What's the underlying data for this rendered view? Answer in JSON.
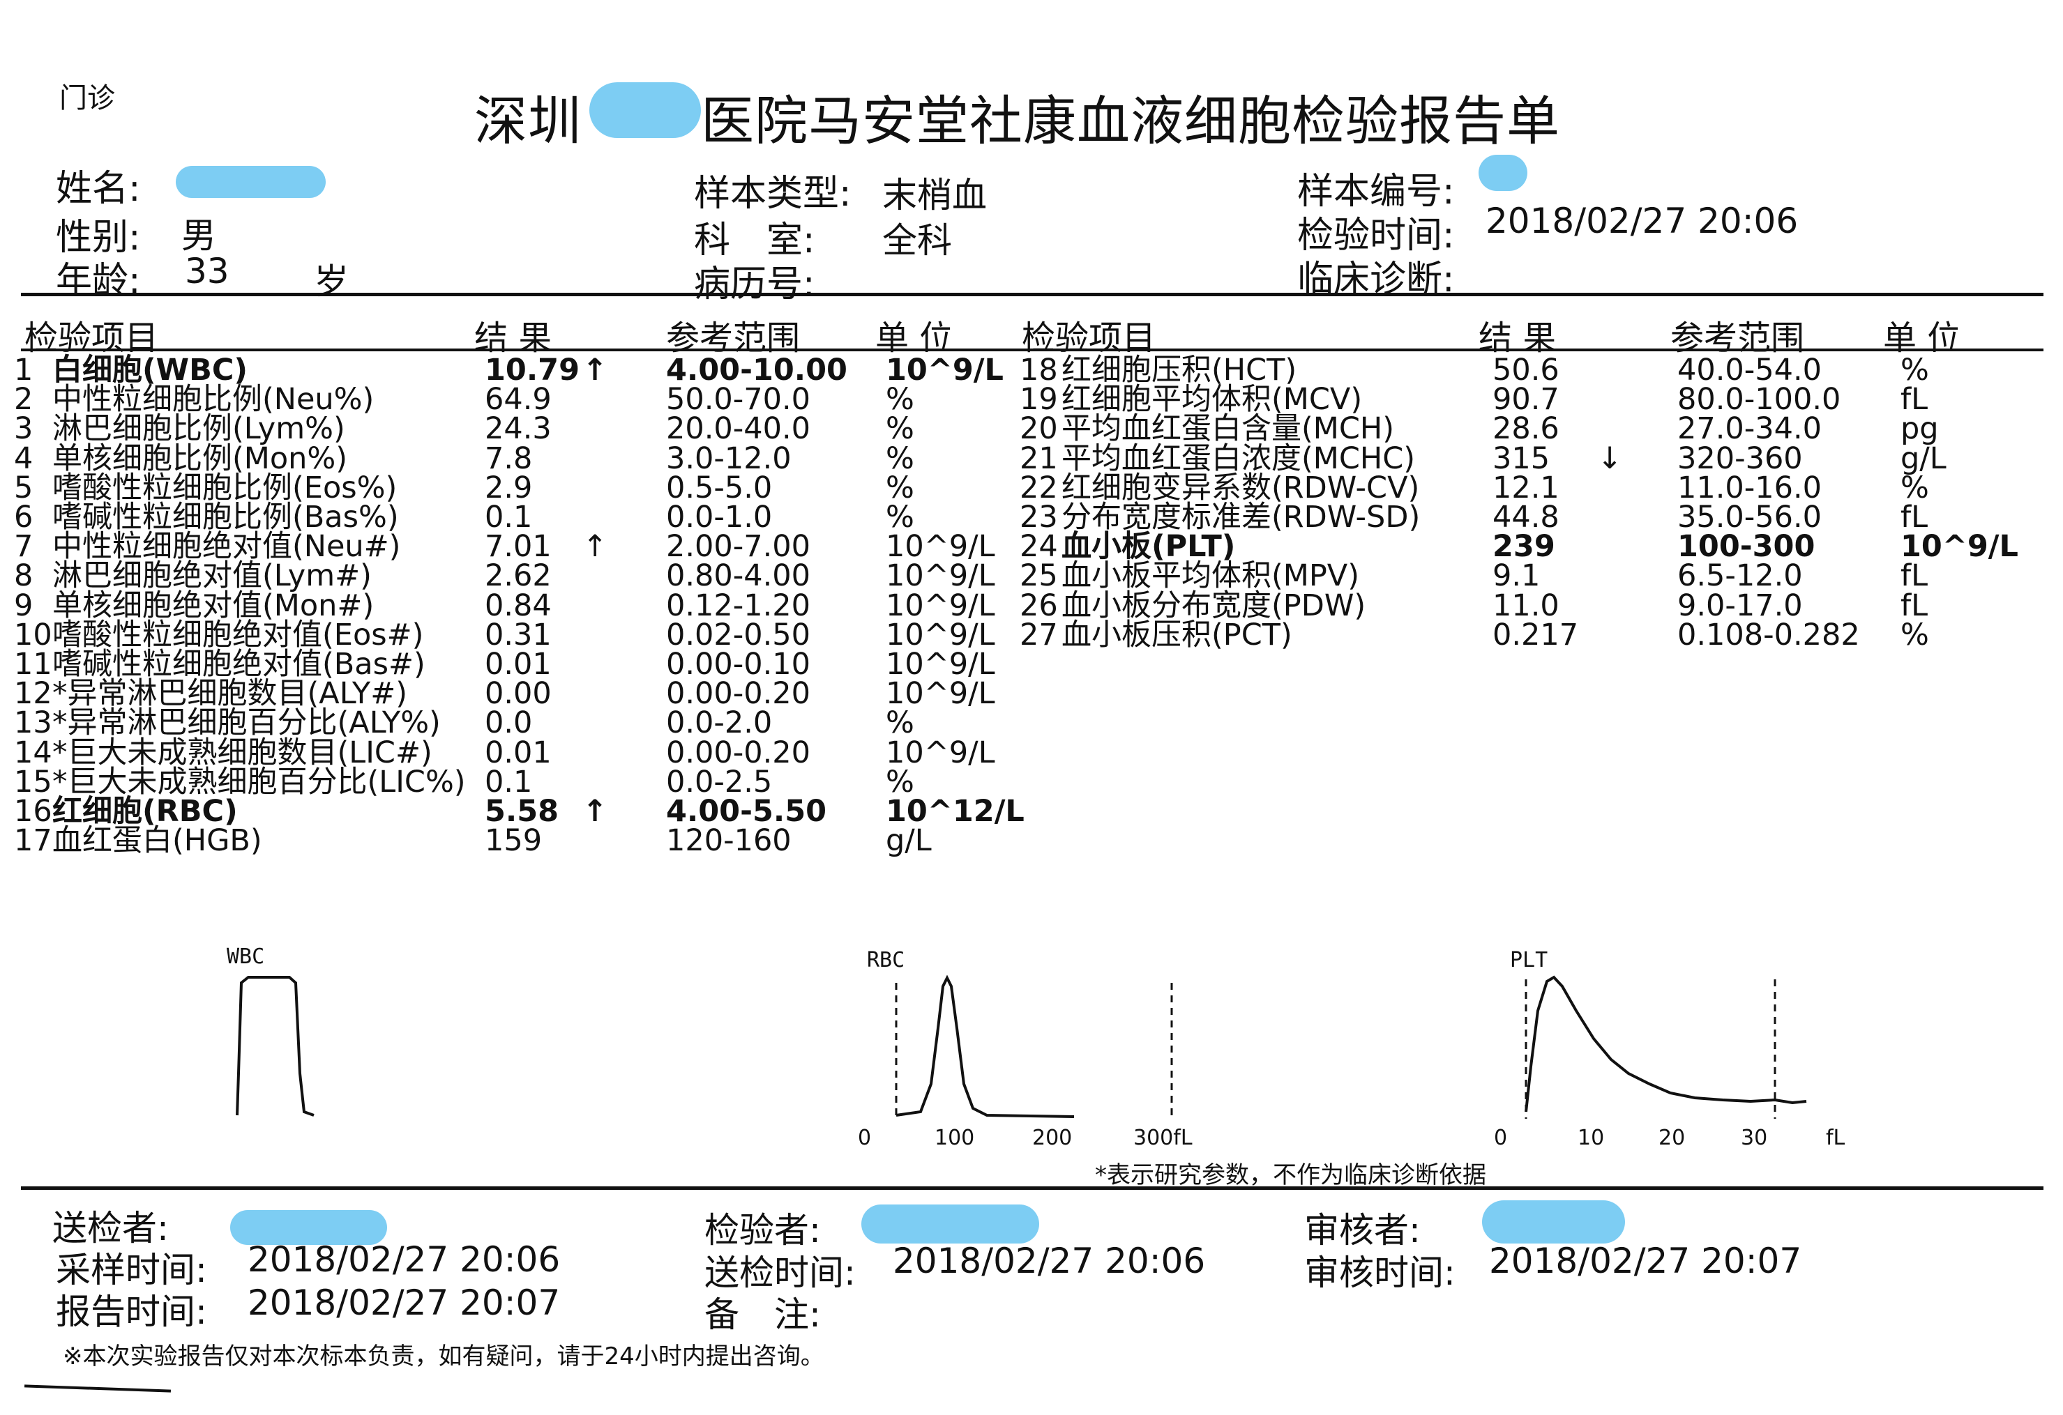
{
  "report": {
    "department": "门诊",
    "title_left": "深圳",
    "title_right": "医院马安堂社康血液细胞检验报告单"
  },
  "patient": {
    "name_label": "姓名:",
    "sex_label": "性别:",
    "sex": "男",
    "age_label": "年龄:",
    "age": "33",
    "age_unit": "岁",
    "sample_type_label": "样本类型:",
    "sample_type": "末梢血",
    "department_label": "科　室:",
    "department": "全科",
    "record_label": "病历号:",
    "sample_no_label": "样本编号:",
    "test_time_label": "检验时间:",
    "test_time": "2018/02/27 20:06",
    "diagnosis_label": "临床诊断:"
  },
  "columns": {
    "item": "检验项目",
    "result": "结 果",
    "range": "参考范围",
    "unit": "单 位"
  },
  "left_rows": [
    {
      "no": "1",
      "name": "白细胞(WBC)",
      "result": "10.79",
      "flag": "↑",
      "range": "4.00-10.00",
      "unit": "10^9/L",
      "bold": true
    },
    {
      "no": "2",
      "name": "中性粒细胞比例(Neu%)",
      "result": "64.9",
      "flag": "",
      "range": "50.0-70.0",
      "unit": "%",
      "bold": false
    },
    {
      "no": "3",
      "name": "淋巴细胞比例(Lym%)",
      "result": "24.3",
      "flag": "",
      "range": "20.0-40.0",
      "unit": "%",
      "bold": false
    },
    {
      "no": "4",
      "name": "单核细胞比例(Mon%)",
      "result": "7.8",
      "flag": "",
      "range": "3.0-12.0",
      "unit": "%",
      "bold": false
    },
    {
      "no": "5",
      "name": "嗜酸性粒细胞比例(Eos%)",
      "result": "2.9",
      "flag": "",
      "range": "0.5-5.0",
      "unit": "%",
      "bold": false
    },
    {
      "no": "6",
      "name": "嗜碱性粒细胞比例(Bas%)",
      "result": "0.1",
      "flag": "",
      "range": "0.0-1.0",
      "unit": "%",
      "bold": false
    },
    {
      "no": "7",
      "name": "中性粒细胞绝对值(Neu#)",
      "result": "7.01",
      "flag": "↑",
      "range": "2.00-7.00",
      "unit": "10^9/L",
      "bold": false
    },
    {
      "no": "8",
      "name": "淋巴细胞绝对值(Lym#)",
      "result": "2.62",
      "flag": "",
      "range": "0.80-4.00",
      "unit": "10^9/L",
      "bold": false
    },
    {
      "no": "9",
      "name": "单核细胞绝对值(Mon#)",
      "result": "0.84",
      "flag": "",
      "range": "0.12-1.20",
      "unit": "10^9/L",
      "bold": false
    },
    {
      "no": "10",
      "name": "嗜酸性粒细胞绝对值(Eos#)",
      "result": "0.31",
      "flag": "",
      "range": "0.02-0.50",
      "unit": "10^9/L",
      "bold": false
    },
    {
      "no": "11",
      "name": "嗜碱性粒细胞绝对值(Bas#)",
      "result": "0.01",
      "flag": "",
      "range": "0.00-0.10",
      "unit": "10^9/L",
      "bold": false
    },
    {
      "no": "12",
      "name": "*异常淋巴细胞数目(ALY#)",
      "result": "0.00",
      "flag": "",
      "range": "0.00-0.20",
      "unit": "10^9/L",
      "bold": false
    },
    {
      "no": "13",
      "name": "*异常淋巴细胞百分比(ALY%)",
      "result": "0.0",
      "flag": "",
      "range": "0.0-2.0",
      "unit": "%",
      "bold": false
    },
    {
      "no": "14",
      "name": "*巨大未成熟细胞数目(LIC#)",
      "result": "0.01",
      "flag": "",
      "range": "0.00-0.20",
      "unit": "10^9/L",
      "bold": false
    },
    {
      "no": "15",
      "name": "*巨大未成熟细胞百分比(LIC%)",
      "result": "0.1",
      "flag": "",
      "range": "0.0-2.5",
      "unit": "%",
      "bold": false
    },
    {
      "no": "16",
      "name": "红细胞(RBC)",
      "result": "5.58",
      "flag": "↑",
      "range": "4.00-5.50",
      "unit": "10^12/L",
      "bold": true
    },
    {
      "no": "17",
      "name": "血红蛋白(HGB)",
      "result": "159",
      "flag": "",
      "range": "120-160",
      "unit": "g/L",
      "bold": false
    }
  ],
  "right_rows": [
    {
      "no": "18",
      "name": "红细胞压积(HCT)",
      "result": "50.6",
      "flag": "",
      "range": "40.0-54.0",
      "unit": "%",
      "bold": false
    },
    {
      "no": "19",
      "name": "红细胞平均体积(MCV)",
      "result": "90.7",
      "flag": "",
      "range": "80.0-100.0",
      "unit": "fL",
      "bold": false
    },
    {
      "no": "20",
      "name": "平均血红蛋白含量(MCH)",
      "result": "28.6",
      "flag": "",
      "range": "27.0-34.0",
      "unit": "pg",
      "bold": false
    },
    {
      "no": "21",
      "name": "平均血红蛋白浓度(MCHC)",
      "result": "315",
      "flag": "↓",
      "range": "320-360",
      "unit": "g/L",
      "bold": false
    },
    {
      "no": "22",
      "name": "红细胞变异系数(RDW-CV)",
      "result": "12.1",
      "flag": "",
      "range": "11.0-16.0",
      "unit": "%",
      "bold": false
    },
    {
      "no": "23",
      "name": "分布宽度标准差(RDW-SD)",
      "result": "44.8",
      "flag": "",
      "range": "35.0-56.0",
      "unit": "fL",
      "bold": false
    },
    {
      "no": "24",
      "name": "血小板(PLT)",
      "result": "239",
      "flag": "",
      "range": "100-300",
      "unit": "10^9/L",
      "bold": true
    },
    {
      "no": "25",
      "name": "血小板平均体积(MPV)",
      "result": "9.1",
      "flag": "",
      "range": "6.5-12.0",
      "unit": "fL",
      "bold": false
    },
    {
      "no": "26",
      "name": "血小板分布宽度(PDW)",
      "result": "11.0",
      "flag": "",
      "range": "9.0-17.0",
      "unit": "fL",
      "bold": false
    },
    {
      "no": "27",
      "name": "血小板压积(PCT)",
      "result": "0.217",
      "flag": "",
      "range": "0.108-0.282",
      "unit": "%",
      "bold": false
    }
  ],
  "histograms": {
    "wbc_label": "WBC",
    "rbc_label": "RBC",
    "rbc_ticks": [
      "0",
      "100",
      "200",
      "300fL"
    ],
    "plt_label": "PLT",
    "plt_ticks": [
      "0",
      "10",
      "20",
      "30",
      "fL"
    ]
  },
  "research_note": "*表示研究参数，不作为临床诊断依据",
  "footer": {
    "sender_label": "送检者:",
    "tester_label": "检验者:",
    "reviewer_label": "审核者:",
    "sample_time_label": "采样时间:",
    "sample_time": "2018/02/27 20:06",
    "send_time_label": "送检时间:",
    "send_time": "2018/02/27 20:06",
    "review_time_label": "审核时间:",
    "review_time": "2018/02/27 20:07",
    "report_time_label": "报告时间:",
    "report_time": "2018/02/27 20:07",
    "remark_label": "备　注:",
    "disclaimer": "※本次实验报告仅对本次标本负责，如有疑问，请于24小时内提出咨询。"
  },
  "colors": {
    "redaction": "#7dcdf3",
    "ink": "#111111"
  }
}
